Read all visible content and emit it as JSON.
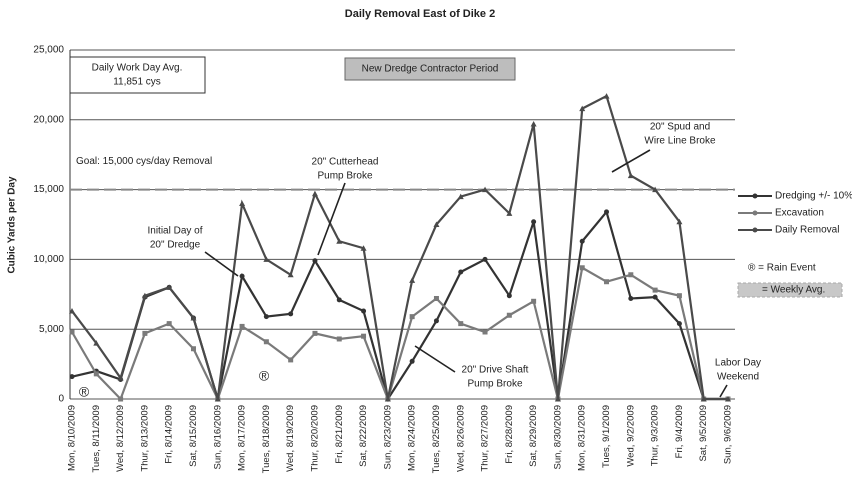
{
  "chart_data": {
    "type": "line",
    "title": "Daily Removal East of Dike 2",
    "y_label": "Cubic Yards per Day",
    "categories": [
      "Mon, 8/10/2009",
      "Tues, 8/11/2009",
      "Wed, 8/12/2009",
      "Thur, 8/13/2009",
      "Fri, 8/14/2009",
      "Sat, 8/15/2009",
      "Sun, 8/16/2009",
      "Mon, 8/17/2009",
      "Tues, 8/18/2009",
      "Wed, 8/19/2009",
      "Thur, 8/20/2009",
      "Fri, 8/21/2009",
      "Sat, 8/22/2009",
      "Sun, 8/23/2009",
      "Mon, 8/24/2009",
      "Tues, 8/25/2009",
      "Wed, 8/26/2009",
      "Thur, 8/27/2009",
      "Fri, 8/28/2009",
      "Sat, 8/29/2009",
      "Sun, 8/30/2009",
      "Mon, 8/31/2009",
      "Tues, 9/1/2009",
      "Wed, 9/2/2009",
      "Thur, 9/3/2009",
      "Fri, 9/4/2009",
      "Sat, 9/5/2009",
      "Sun, 9/6/2009"
    ],
    "series": [
      {
        "name": "Dredging +/- 10%",
        "color": "#333333",
        "marker": "circle",
        "values": [
          1600,
          2000,
          1400,
          7300,
          8000,
          5800,
          0,
          8800,
          5900,
          6100,
          9900,
          7100,
          6300,
          0,
          2700,
          5600,
          9100,
          10000,
          7400,
          12700,
          0,
          11300,
          13400,
          7200,
          7300,
          5400,
          0,
          0
        ]
      },
      {
        "name": "Excavation",
        "color": "#7a7a7a",
        "marker": "square",
        "values": [
          4800,
          1800,
          0,
          4700,
          5400,
          3600,
          0,
          5200,
          4100,
          2800,
          4700,
          4300,
          4500,
          0,
          5900,
          7200,
          5400,
          4800,
          6000,
          7000,
          0,
          9400,
          8400,
          8900,
          7800,
          7400,
          0,
          0
        ]
      },
      {
        "name": "Daily Removal",
        "color": "#4a4a4a",
        "marker": "triangle",
        "values": [
          6300,
          4000,
          1500,
          7400,
          8000,
          5800,
          0,
          14000,
          10000,
          8900,
          14700,
          11300,
          10800,
          0,
          8500,
          12500,
          14500,
          15000,
          13300,
          19700,
          0,
          20800,
          21700,
          16000,
          15000,
          12700,
          0,
          0
        ]
      }
    ],
    "ylim": [
      0,
      25000
    ],
    "yticks": [
      0,
      {
        "value": 5000,
        "label": "5,000"
      },
      {
        "value": 10000,
        "label": "10,000"
      },
      {
        "value": 15000,
        "label": "15,000"
      },
      {
        "value": 20000,
        "label": "20,000"
      },
      {
        "value": 25000,
        "label": "25,000"
      }
    ],
    "grid": true,
    "goal": {
      "value": 15000,
      "label": "Goal: 15,000 cys/day Removal"
    },
    "annotations": [
      {
        "lines": [
          "Daily Work Day Avg.",
          "11,851 cys"
        ]
      },
      {
        "lines": [
          "New Dredge Contractor Period"
        ]
      },
      {
        "lines": [
          "20\" Cutterhead",
          "Pump Broke"
        ]
      },
      {
        "lines": [
          "Initial Day of",
          "20\" Dredge"
        ]
      },
      {
        "lines": [
          "20\" Spud and",
          "Wire Line Broke"
        ]
      },
      {
        "lines": [
          "20\" Drive Shaft",
          "Pump Broke"
        ]
      },
      {
        "lines": [
          "Labor Day",
          "Weekend"
        ]
      }
    ],
    "rain_marker": "®",
    "rain_legend": "® = Rain Event",
    "weekly_legend": "= Weekly Avg."
  }
}
